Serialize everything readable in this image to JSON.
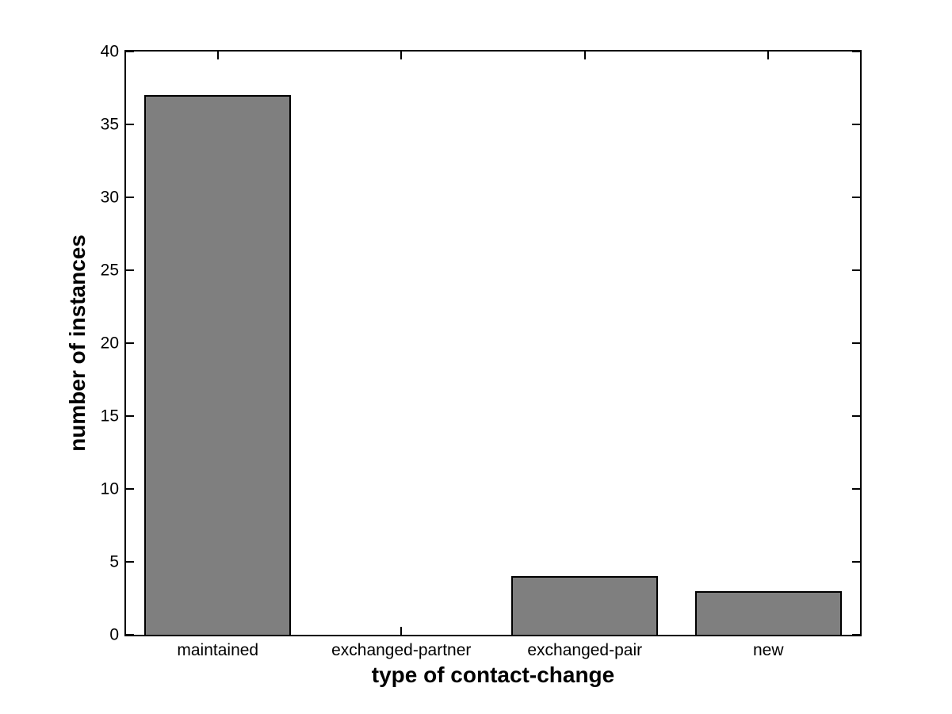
{
  "chart_data": {
    "type": "bar",
    "xlabel": "type of contact-change",
    "ylabel": "number of instances",
    "categories": [
      "maintained",
      "exchanged-partner",
      "exchanged-pair",
      "new"
    ],
    "values": [
      37,
      0,
      4,
      3
    ],
    "ylim": [
      0,
      40
    ],
    "yticks": [
      0,
      5,
      10,
      15,
      20,
      25,
      30,
      35,
      40
    ],
    "bar_width_fraction": 0.8,
    "grid": false,
    "legend": null,
    "colors": {
      "bar_fill": "#7f7f7f",
      "bar_edge": "#000000",
      "axis": "#000000",
      "background": "#ffffff",
      "text": "#000000"
    }
  }
}
